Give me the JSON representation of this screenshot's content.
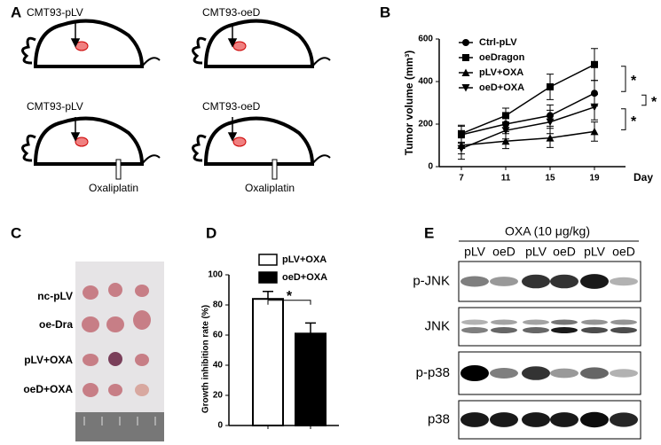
{
  "panels": {
    "A": {
      "letter": "A",
      "labels": [
        "CMT93-pLV",
        "CMT93-oeD",
        "CMT93-pLV",
        "CMT93-oeD"
      ],
      "drug": [
        "Oxaliplatin",
        "Oxaliplatin"
      ]
    },
    "C": {
      "letter": "C",
      "rows": [
        "nc-pLV",
        "oe-Dra",
        "pLV+OXA",
        "oeD+OXA"
      ]
    },
    "E": {
      "letter": "E",
      "treatment": "OXA (10 μg/kg)",
      "lanes": [
        "pLV",
        "oeD",
        "pLV",
        "oeD",
        "pLV",
        "oeD"
      ],
      "rows": [
        "p-JNK",
        "JNK",
        "p-p38",
        "p38"
      ]
    }
  },
  "chart_data": [
    {
      "type": "line",
      "letter": "B",
      "ylabel": "Tumor volume (mm³)",
      "xlabel": "Day",
      "x": [
        7,
        11,
        15,
        19
      ],
      "xlim": [
        5,
        21
      ],
      "xticks": [
        7,
        11,
        15,
        19
      ],
      "ylim": [
        0,
        600
      ],
      "yticks": [
        0,
        200,
        400,
        600
      ],
      "series": [
        {
          "name": "Ctrl-pLV",
          "marker": "circle",
          "color": "#000000",
          "values": [
            150,
            200,
            240,
            345
          ],
          "errors": [
            40,
            35,
            50,
            60
          ]
        },
        {
          "name": "oeDragon",
          "marker": "square",
          "color": "#000000",
          "values": [
            155,
            240,
            375,
            480
          ],
          "errors": [
            40,
            35,
            60,
            75
          ]
        },
        {
          "name": "pLV+OXA",
          "marker": "triangle-up",
          "color": "#000000",
          "values": [
            100,
            120,
            135,
            165
          ],
          "errors": [
            40,
            35,
            45,
            45
          ]
        },
        {
          "name": "oeD+OXA",
          "marker": "triangle-down",
          "color": "#000000",
          "values": [
            85,
            170,
            210,
            280
          ],
          "errors": [
            50,
            40,
            55,
            60
          ]
        }
      ],
      "annotations": [
        "*",
        "*",
        "*"
      ]
    },
    {
      "type": "bar",
      "letter": "D",
      "ylabel": "Growth inhibition rate (%)",
      "ylim": [
        0,
        100
      ],
      "yticks": [
        0,
        20,
        40,
        60,
        80,
        100
      ],
      "series": [
        {
          "name": "pLV+OXA",
          "color": "#ffffff",
          "values": [
            84
          ],
          "errors": [
            5
          ]
        },
        {
          "name": "oeD+OXA",
          "color": "#000000",
          "values": [
            61
          ],
          "errors": [
            7
          ]
        }
      ],
      "annotations": [
        "*"
      ]
    }
  ]
}
